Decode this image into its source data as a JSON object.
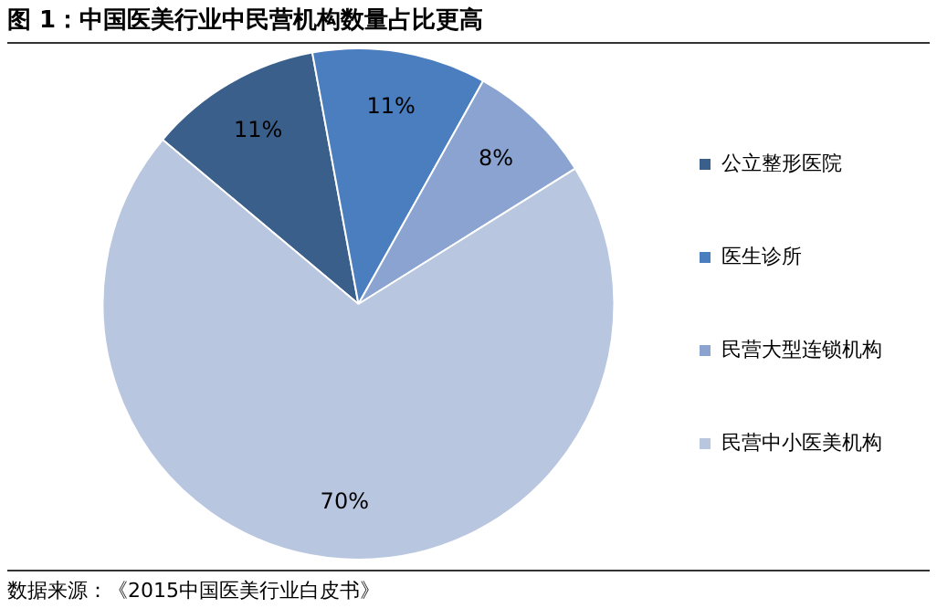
{
  "chart_data": {
    "type": "pie",
    "title": "图 1：中国医美行业中民营机构数量占比更高",
    "categories": [
      "公立整形医院",
      "医生诊所",
      "民营大型连锁机构",
      "民营中小医美机构"
    ],
    "values": [
      11,
      11,
      8,
      70
    ],
    "colors": [
      "#3a5f8b",
      "#4a7ebf",
      "#8aa3d0",
      "#b8c6e0"
    ],
    "value_labels": [
      "11%",
      "11%",
      "8%",
      "70%"
    ],
    "legend": "right",
    "annotations": [
      "数据来源：《2015中国医美行业白皮书》"
    ]
  }
}
